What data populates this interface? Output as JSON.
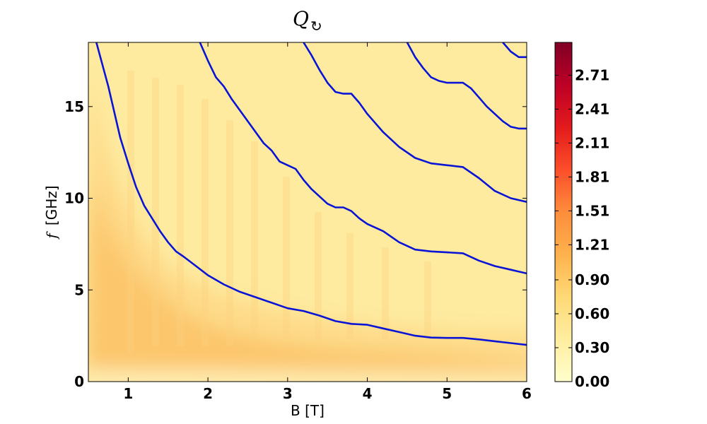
{
  "chart_data": {
    "type": "heatmap",
    "title": "Q",
    "title_subscript": "↻",
    "xlabel": "B [T]",
    "ylabel_symbol": "f",
    "ylabel_unit": "[GHz]",
    "xlim": [
      0.5,
      6.0
    ],
    "ylim": [
      0,
      18.5
    ],
    "x_ticks": [
      1,
      2,
      3,
      4,
      5,
      6
    ],
    "y_ticks": [
      0,
      5,
      10,
      15
    ],
    "grid": false,
    "colormap": "YlOrRd",
    "colorbar": {
      "range": [
        0.0,
        3.0
      ],
      "ticks": [
        "0.00",
        "0.30",
        "0.60",
        "0.90",
        "1.21",
        "1.51",
        "1.81",
        "2.11",
        "2.41",
        "2.71"
      ],
      "tick_values": [
        0.0,
        0.3,
        0.6,
        0.9,
        1.21,
        1.51,
        1.81,
        2.11,
        2.41,
        2.71
      ],
      "colors": [
        "#ffffcc",
        "#ffeda0",
        "#fed976",
        "#feb24c",
        "#fd8d3c",
        "#fc4e2a",
        "#e31a1c",
        "#bd0026",
        "#800026"
      ]
    },
    "series_color": "#0a14d6",
    "series": [
      {
        "x": [
          0.6,
          0.75,
          0.9,
          1.0,
          1.1,
          1.2,
          1.3,
          1.4,
          1.5,
          1.6,
          1.7,
          1.85,
          2.0,
          2.2,
          2.4,
          2.6,
          2.8,
          3.0,
          3.2,
          3.4,
          3.6,
          3.8,
          4.0,
          4.2,
          4.4,
          4.6,
          4.8,
          5.0,
          5.2,
          5.4,
          5.6,
          5.8,
          6.0
        ],
        "y": [
          18.5,
          16.1,
          13.3,
          11.9,
          10.6,
          9.6,
          8.9,
          8.2,
          7.6,
          7.1,
          6.8,
          6.3,
          5.8,
          5.3,
          4.9,
          4.6,
          4.3,
          4.0,
          3.85,
          3.6,
          3.3,
          3.15,
          3.1,
          2.9,
          2.7,
          2.5,
          2.4,
          2.38,
          2.38,
          2.3,
          2.2,
          2.1,
          2.0
        ]
      },
      {
        "x": [
          1.9,
          2.0,
          2.1,
          2.2,
          2.3,
          2.4,
          2.5,
          2.6,
          2.7,
          2.8,
          2.9,
          3.0,
          3.1,
          3.2,
          3.3,
          3.4,
          3.5,
          3.6,
          3.7,
          3.8,
          3.9,
          4.0,
          4.2,
          4.4,
          4.6,
          4.8,
          5.0,
          5.2,
          5.4,
          5.6,
          5.8,
          6.0
        ],
        "y": [
          18.5,
          17.5,
          16.6,
          16.1,
          15.4,
          14.8,
          14.2,
          13.6,
          13.0,
          12.6,
          12.0,
          11.8,
          11.6,
          11.0,
          10.5,
          10.1,
          9.7,
          9.5,
          9.5,
          9.3,
          8.9,
          8.6,
          8.2,
          7.6,
          7.2,
          7.1,
          7.05,
          7.0,
          6.6,
          6.3,
          6.1,
          5.9
        ]
      },
      {
        "x": [
          3.2,
          3.3,
          3.4,
          3.5,
          3.6,
          3.7,
          3.8,
          3.9,
          4.0,
          4.2,
          4.4,
          4.6,
          4.8,
          5.0,
          5.2,
          5.4,
          5.6,
          5.8,
          6.0
        ],
        "y": [
          18.5,
          17.8,
          17.0,
          16.3,
          15.8,
          15.7,
          15.7,
          15.2,
          14.6,
          13.6,
          12.8,
          12.2,
          11.9,
          11.8,
          11.7,
          11.1,
          10.4,
          10.0,
          9.8
        ]
      },
      {
        "x": [
          4.5,
          4.6,
          4.7,
          4.8,
          4.9,
          5.0,
          5.1,
          5.2,
          5.3,
          5.4,
          5.5,
          5.6,
          5.7,
          5.8,
          5.9,
          6.0
        ],
        "y": [
          18.5,
          17.7,
          17.1,
          16.6,
          16.4,
          16.3,
          16.3,
          16.3,
          16.0,
          15.5,
          15.0,
          14.6,
          14.2,
          13.9,
          13.8,
          13.8
        ]
      },
      {
        "x": [
          5.7,
          5.8,
          5.9,
          6.0
        ],
        "y": [
          18.5,
          18.0,
          17.7,
          17.7
        ]
      }
    ]
  }
}
